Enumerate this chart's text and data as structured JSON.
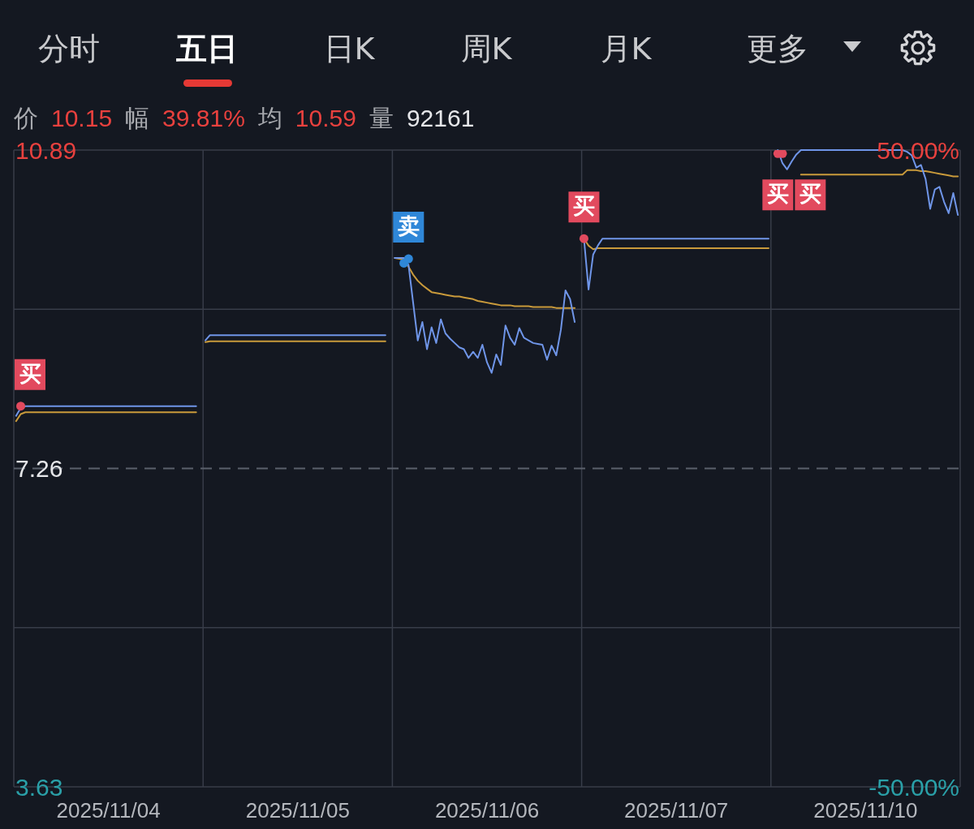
{
  "chart_data": {
    "type": "line",
    "annotations": [
      "分时",
      "五日",
      "日K",
      "周K",
      "月K",
      "更多",
      "价 10.15",
      "幅 39.81%",
      "均 10.59",
      "量 92161"
    ],
    "categories": [
      null,
      null,
      null,
      null,
      null,
      null,
      null,
      null,
      null,
      null,
      null,
      null,
      null,
      null,
      null,
      null,
      null,
      null,
      null,
      null,
      "2025/11/04",
      null,
      null,
      null,
      null,
      null,
      null,
      null,
      null,
      null,
      null,
      null,
      null,
      null,
      null,
      null,
      null,
      null,
      null,
      null,
      null,
      null,
      null,
      null,
      null,
      null,
      null,
      null,
      null,
      null,
      null,
      null,
      null,
      null,
      null,
      null,
      null,
      null,
      null,
      null,
      null,
      "2025/11/05",
      null,
      null,
      null,
      null,
      null,
      null,
      null,
      null,
      null,
      null,
      null,
      null,
      null,
      null,
      null,
      null,
      null,
      null,
      null,
      null,
      null,
      null,
      null,
      null,
      null,
      null,
      null,
      null,
      null,
      null,
      null,
      null,
      null,
      null,
      null,
      null,
      null,
      null,
      null,
      null,
      "2025/11/06",
      null,
      null,
      null,
      null,
      null,
      null,
      null,
      null,
      null,
      null,
      null,
      null,
      null,
      null,
      null,
      null,
      null,
      null,
      null,
      null,
      null,
      null,
      null,
      null,
      null,
      null,
      null,
      null,
      null,
      null,
      null,
      null,
      null,
      null,
      null,
      null,
      null,
      null,
      null,
      null,
      "2025/11/07",
      null,
      null,
      null,
      null,
      null,
      null,
      null,
      null,
      null,
      null,
      null,
      null,
      null,
      null,
      null,
      null,
      null,
      null,
      null,
      null,
      null,
      null,
      null,
      null,
      null,
      null,
      null,
      null,
      null,
      null,
      null,
      null,
      null,
      null,
      null,
      null,
      null,
      null,
      null,
      null,
      "2025/11/10",
      null,
      null,
      null,
      null,
      null,
      null,
      null,
      null,
      null,
      null,
      null,
      null,
      null,
      null,
      null,
      null,
      null,
      null,
      null,
      null
    ],
    "ylim": [
      3.63,
      10.89
    ],
    "yticks": [
      3.63,
      {
        "value": 5.445,
        "label": null
      },
      {
        "value": 9.075,
        "label": null
      },
      10.89
    ],
    "y2lim": [
      -50,
      50
    ],
    "y2ticks": [
      {
        "value": -50,
        "label": "-50.00%"
      },
      {
        "value": 50,
        "label": "50.00%"
      }
    ],
    "grid": true,
    "legend": false,
    "ref_lines": [
      {
        "axis": "y",
        "value": 7.26,
        "label": "7.26",
        "color": "#5b606c",
        "line_style": "dashed"
      }
    ],
    "series": [
      {
        "color": "#6f95e8",
        "values": [
          7.86,
          7.95,
          7.97,
          7.97,
          7.97,
          7.97,
          7.97,
          7.97,
          7.97,
          7.97,
          7.97,
          7.97,
          7.97,
          7.97,
          7.97,
          7.97,
          7.97,
          7.97,
          7.97,
          7.97,
          7.97,
          7.97,
          7.97,
          7.97,
          7.97,
          7.97,
          7.97,
          7.97,
          7.97,
          7.97,
          7.97,
          7.97,
          7.97,
          7.97,
          7.97,
          7.97,
          7.97,
          7.97,
          7.97,
          7.97,
          null,
          8.72,
          8.78,
          8.78,
          8.78,
          8.78,
          8.78,
          8.78,
          8.78,
          8.78,
          8.78,
          8.78,
          8.78,
          8.78,
          8.78,
          8.78,
          8.78,
          8.78,
          8.78,
          8.78,
          8.78,
          8.78,
          8.78,
          8.78,
          8.78,
          8.78,
          8.78,
          8.78,
          8.78,
          8.78,
          8.78,
          8.78,
          8.78,
          8.78,
          8.78,
          8.78,
          8.78,
          8.78,
          8.78,
          8.78,
          8.78,
          null,
          9.66,
          9.66,
          9.66,
          9.58,
          9.15,
          8.72,
          8.93,
          8.62,
          8.87,
          8.69,
          8.96,
          8.8,
          8.74,
          8.69,
          8.64,
          8.62,
          8.52,
          8.59,
          8.52,
          8.67,
          8.47,
          8.35,
          8.56,
          8.44,
          8.89,
          8.75,
          8.67,
          8.86,
          8.75,
          8.72,
          8.69,
          8.68,
          8.67,
          8.5,
          8.66,
          8.55,
          8.84,
          9.29,
          9.19,
          8.93,
          null,
          9.88,
          9.3,
          9.7,
          9.8,
          9.88,
          9.88,
          9.88,
          9.88,
          9.88,
          9.88,
          9.88,
          9.88,
          9.88,
          9.88,
          9.88,
          9.88,
          9.88,
          9.88,
          9.88,
          9.88,
          9.88,
          9.88,
          9.88,
          9.88,
          9.88,
          9.88,
          9.88,
          9.88,
          9.88,
          9.88,
          9.88,
          9.88,
          9.88,
          9.88,
          9.88,
          9.88,
          9.88,
          9.88,
          9.88,
          9.88,
          9.88,
          null,
          10.89,
          10.74,
          10.67,
          10.76,
          10.84,
          10.89,
          10.89,
          10.89,
          10.89,
          10.89,
          10.89,
          10.89,
          10.89,
          10.89,
          10.89,
          10.89,
          10.89,
          10.89,
          10.89,
          10.89,
          10.89,
          10.89,
          10.89,
          10.89,
          10.89,
          10.89,
          10.89,
          10.89,
          10.87,
          10.83,
          10.69,
          10.72,
          10.56,
          10.22,
          10.44,
          10.47,
          10.3,
          10.17,
          10.4,
          10.15
        ]
      },
      {
        "color": "#c99a3b",
        "values": [
          7.8,
          7.88,
          7.9,
          7.9,
          7.9,
          7.9,
          7.9,
          7.9,
          7.9,
          7.9,
          7.9,
          7.9,
          7.9,
          7.9,
          7.9,
          7.9,
          7.9,
          7.9,
          7.9,
          7.9,
          7.9,
          7.9,
          7.9,
          7.9,
          7.9,
          7.9,
          7.9,
          7.9,
          7.9,
          7.9,
          7.9,
          7.9,
          7.9,
          7.9,
          7.9,
          7.9,
          7.9,
          7.9,
          7.9,
          7.9,
          null,
          8.7,
          8.71,
          8.71,
          8.71,
          8.71,
          8.71,
          8.71,
          8.71,
          8.71,
          8.71,
          8.71,
          8.71,
          8.71,
          8.71,
          8.71,
          8.71,
          8.71,
          8.71,
          8.71,
          8.71,
          8.71,
          8.71,
          8.71,
          8.71,
          8.71,
          8.71,
          8.71,
          8.71,
          8.71,
          8.71,
          8.71,
          8.71,
          8.71,
          8.71,
          8.71,
          8.71,
          8.71,
          8.71,
          8.71,
          8.71,
          null,
          9.66,
          9.65,
          9.64,
          9.56,
          9.47,
          9.4,
          9.35,
          9.31,
          9.27,
          9.26,
          9.25,
          9.24,
          9.23,
          9.22,
          9.22,
          9.21,
          9.2,
          9.19,
          9.17,
          9.16,
          9.15,
          9.14,
          9.13,
          9.12,
          9.12,
          9.12,
          9.11,
          9.11,
          9.11,
          9.11,
          9.1,
          9.1,
          9.1,
          9.1,
          9.1,
          9.09,
          9.09,
          9.09,
          9.09,
          9.09,
          null,
          9.88,
          9.8,
          9.76,
          9.77,
          9.77,
          9.77,
          9.77,
          9.77,
          9.77,
          9.77,
          9.77,
          9.77,
          9.77,
          9.77,
          9.77,
          9.77,
          9.77,
          9.77,
          9.77,
          9.77,
          9.77,
          9.77,
          9.77,
          9.77,
          9.77,
          9.77,
          9.77,
          9.77,
          9.77,
          9.77,
          9.77,
          9.77,
          9.77,
          9.77,
          9.77,
          9.77,
          9.77,
          9.77,
          9.77,
          9.77,
          9.77,
          null,
          null,
          null,
          null,
          null,
          null,
          10.61,
          10.61,
          10.61,
          10.61,
          10.61,
          10.61,
          10.61,
          10.61,
          10.61,
          10.61,
          10.61,
          10.61,
          10.61,
          10.61,
          10.61,
          10.61,
          10.61,
          10.61,
          10.61,
          10.61,
          10.61,
          10.61,
          10.61,
          10.66,
          10.66,
          10.66,
          10.65,
          10.65,
          10.64,
          10.63,
          10.62,
          10.61,
          10.6,
          10.59,
          10.59
        ]
      },
      {
        "type": "scatter",
        "color": "#e24a5e",
        "values": [
          null,
          7.97,
          null,
          null,
          null,
          null,
          null,
          null,
          null,
          null,
          null,
          null,
          null,
          null,
          null,
          null,
          null,
          null,
          null,
          null,
          null,
          null,
          null,
          null,
          null,
          null,
          null,
          null,
          null,
          null,
          null,
          null,
          null,
          null,
          null,
          null,
          null,
          null,
          null,
          null,
          null,
          null,
          null,
          null,
          null,
          null,
          null,
          null,
          null,
          null,
          null,
          null,
          null,
          null,
          null,
          null,
          null,
          null,
          null,
          null,
          null,
          null,
          null,
          null,
          null,
          null,
          null,
          null,
          null,
          null,
          null,
          null,
          null,
          null,
          null,
          null,
          null,
          null,
          null,
          null,
          null,
          null,
          null,
          null,
          null,
          null,
          null,
          null,
          null,
          null,
          null,
          null,
          null,
          null,
          null,
          null,
          null,
          null,
          null,
          null,
          null,
          null,
          null,
          null,
          null,
          null,
          null,
          null,
          null,
          null,
          null,
          null,
          null,
          null,
          null,
          null,
          null,
          null,
          null,
          null,
          null,
          null,
          null,
          9.88,
          null,
          null,
          null,
          null,
          null,
          null,
          null,
          null,
          null,
          null,
          null,
          null,
          null,
          null,
          null,
          null,
          null,
          null,
          null,
          null,
          null,
          null,
          null,
          null,
          null,
          null,
          null,
          null,
          null,
          null,
          null,
          null,
          null,
          null,
          null,
          null,
          null,
          null,
          null,
          null,
          null,
          10.85,
          10.85,
          null,
          null,
          null,
          null,
          null,
          null,
          null,
          null,
          null,
          null,
          null,
          null,
          null,
          null,
          null,
          null,
          null,
          null,
          null,
          null,
          null,
          null,
          null,
          null,
          null,
          null,
          null,
          null,
          null,
          null,
          null,
          null,
          null,
          null,
          null,
          null,
          null,
          null
        ],
        "value_labels": [
          null,
          "买",
          null,
          null,
          null,
          null,
          null,
          null,
          null,
          null,
          null,
          null,
          null,
          null,
          null,
          null,
          null,
          null,
          null,
          null,
          null,
          null,
          null,
          null,
          null,
          null,
          null,
          null,
          null,
          null,
          null,
          null,
          null,
          null,
          null,
          null,
          null,
          null,
          null,
          null,
          null,
          null,
          null,
          null,
          null,
          null,
          null,
          null,
          null,
          null,
          null,
          null,
          null,
          null,
          null,
          null,
          null,
          null,
          null,
          null,
          null,
          null,
          null,
          null,
          null,
          null,
          null,
          null,
          null,
          null,
          null,
          null,
          null,
          null,
          null,
          null,
          null,
          null,
          null,
          null,
          null,
          null,
          null,
          null,
          null,
          null,
          null,
          null,
          null,
          null,
          null,
          null,
          null,
          null,
          null,
          null,
          null,
          null,
          null,
          null,
          null,
          null,
          null,
          null,
          null,
          null,
          null,
          null,
          null,
          null,
          null,
          null,
          null,
          null,
          null,
          null,
          null,
          null,
          null,
          null,
          null,
          null,
          null,
          "买",
          null,
          null,
          null,
          null,
          null,
          null,
          null,
          null,
          null,
          null,
          null,
          null,
          null,
          null,
          null,
          null,
          null,
          null,
          null,
          null,
          null,
          null,
          null,
          null,
          null,
          null,
          null,
          null,
          null,
          null,
          null,
          null,
          null,
          null,
          null,
          null,
          null,
          null,
          null,
          null,
          null,
          "买",
          "买",
          null,
          null,
          null,
          null,
          null,
          null,
          null,
          null,
          null,
          null,
          null,
          null,
          null,
          null,
          null,
          null,
          null,
          null,
          null,
          null,
          null,
          null,
          null,
          null,
          null,
          null,
          null,
          null,
          null,
          null,
          null,
          null,
          null,
          null,
          null,
          null,
          null,
          null
        ]
      },
      {
        "type": "scatter",
        "color": "#2f87d8",
        "values": [
          null,
          null,
          null,
          null,
          null,
          null,
          null,
          null,
          null,
          null,
          null,
          null,
          null,
          null,
          null,
          null,
          null,
          null,
          null,
          null,
          null,
          null,
          null,
          null,
          null,
          null,
          null,
          null,
          null,
          null,
          null,
          null,
          null,
          null,
          null,
          null,
          null,
          null,
          null,
          null,
          null,
          null,
          null,
          null,
          null,
          null,
          null,
          null,
          null,
          null,
          null,
          null,
          null,
          null,
          null,
          null,
          null,
          null,
          null,
          null,
          null,
          null,
          null,
          null,
          null,
          null,
          null,
          null,
          null,
          null,
          null,
          null,
          null,
          null,
          null,
          null,
          null,
          null,
          null,
          null,
          null,
          null,
          null,
          null,
          9.6,
          9.65,
          null,
          null,
          null,
          null,
          null,
          null,
          null,
          null,
          null,
          null,
          null,
          null,
          null,
          null,
          null,
          null,
          null,
          null,
          null,
          null,
          null,
          null,
          null,
          null,
          null,
          null,
          null,
          null,
          null,
          null,
          null,
          null,
          null,
          null,
          null,
          null,
          null,
          null,
          null,
          null,
          null,
          null,
          null,
          null,
          null,
          null,
          null,
          null,
          null,
          null,
          null,
          null,
          null,
          null,
          null,
          null,
          null,
          null,
          null,
          null,
          null,
          null,
          null,
          null,
          null,
          null,
          null,
          null,
          null,
          null,
          null,
          null,
          null,
          null,
          null,
          null,
          null,
          null,
          null,
          null,
          null,
          null,
          null,
          null,
          null,
          null,
          null,
          null,
          null,
          null,
          null,
          null,
          null,
          null,
          null,
          null,
          null,
          null,
          null,
          null,
          null,
          null,
          null,
          null,
          null,
          null,
          null,
          null,
          null,
          null,
          null,
          null,
          null,
          null,
          null,
          null,
          null,
          null,
          null
        ],
        "value_labels": [
          null,
          null,
          null,
          null,
          null,
          null,
          null,
          null,
          null,
          null,
          null,
          null,
          null,
          null,
          null,
          null,
          null,
          null,
          null,
          null,
          null,
          null,
          null,
          null,
          null,
          null,
          null,
          null,
          null,
          null,
          null,
          null,
          null,
          null,
          null,
          null,
          null,
          null,
          null,
          null,
          null,
          null,
          null,
          null,
          null,
          null,
          null,
          null,
          null,
          null,
          null,
          null,
          null,
          null,
          null,
          null,
          null,
          null,
          null,
          null,
          null,
          null,
          null,
          null,
          null,
          null,
          null,
          null,
          null,
          null,
          null,
          null,
          null,
          null,
          null,
          null,
          null,
          null,
          null,
          null,
          null,
          null,
          null,
          null,
          null,
          "卖",
          null,
          null,
          null,
          null,
          null,
          null,
          null,
          null,
          null,
          null,
          null,
          null,
          null,
          null,
          null,
          null,
          null,
          null,
          null,
          null,
          null,
          null,
          null,
          null,
          null,
          null,
          null,
          null,
          null,
          null,
          null,
          null,
          null,
          null,
          null,
          null,
          null,
          null,
          null,
          null,
          null,
          null,
          null,
          null,
          null,
          null,
          null,
          null,
          null,
          null,
          null,
          null,
          null,
          null,
          null,
          null,
          null,
          null,
          null,
          null,
          null,
          null,
          null,
          null,
          null,
          null,
          null,
          null,
          null,
          null,
          null,
          null,
          null,
          null,
          null,
          null,
          null,
          null,
          null,
          null,
          null,
          null,
          null,
          null,
          null,
          null,
          null,
          null,
          null,
          null,
          null,
          null,
          null,
          null,
          null,
          null,
          null,
          null,
          null,
          null,
          null,
          null,
          null,
          null,
          null,
          null,
          null,
          null,
          null,
          null,
          null,
          null,
          null,
          null,
          null,
          null,
          null,
          null,
          null
        ]
      }
    ]
  }
}
